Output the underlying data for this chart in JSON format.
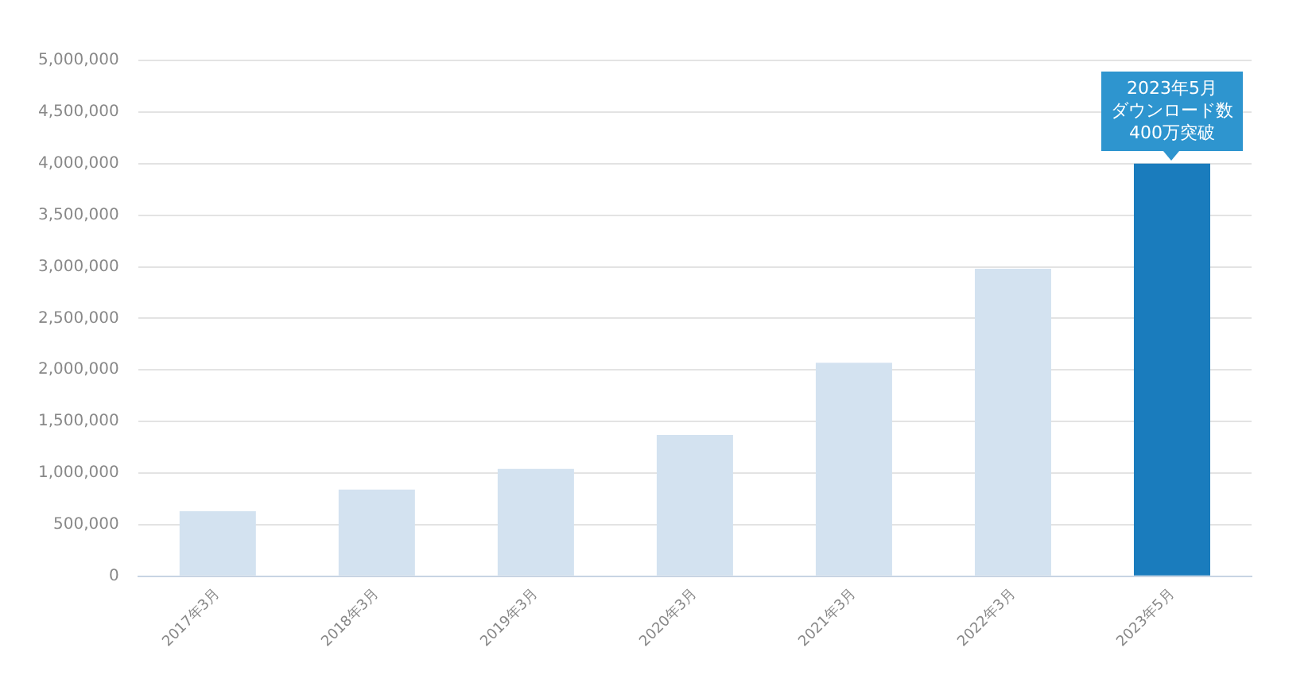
{
  "chart_data": {
    "type": "bar",
    "categories": [
      "2017年3月",
      "2018年3月",
      "2019年3月",
      "2020年3月",
      "2021年3月",
      "2022年3月",
      "2023年5月"
    ],
    "values": [
      630000,
      840000,
      1040000,
      1370000,
      2070000,
      2980000,
      4000000
    ],
    "colors": [
      "#d3e2f0",
      "#d3e2f0",
      "#d3e2f0",
      "#d3e2f0",
      "#d3e2f0",
      "#d3e2f0",
      "#1a7cbd"
    ],
    "ylim": [
      0,
      5000000
    ],
    "yticks": [
      {
        "value": 0,
        "label": "0"
      },
      {
        "value": 500000,
        "label": "500,000"
      },
      {
        "value": 1000000,
        "label": "1,000,000"
      },
      {
        "value": 1500000,
        "label": "1,500,000"
      },
      {
        "value": 2000000,
        "label": "2,000,000"
      },
      {
        "value": 2500000,
        "label": "2,500,000"
      },
      {
        "value": 3000000,
        "label": "3,000,000"
      },
      {
        "value": 3500000,
        "label": "3,500,000"
      },
      {
        "value": 4000000,
        "label": "4,000,000"
      },
      {
        "value": 4500000,
        "label": "4,500,000"
      },
      {
        "value": 5000000,
        "label": "5,000,000"
      }
    ],
    "grid": "y",
    "legend": false,
    "annotations": [
      {
        "text": "2023年5月ダウンロード数400万突破",
        "x": "2023年5月",
        "y": 4000000
      }
    ]
  }
}
